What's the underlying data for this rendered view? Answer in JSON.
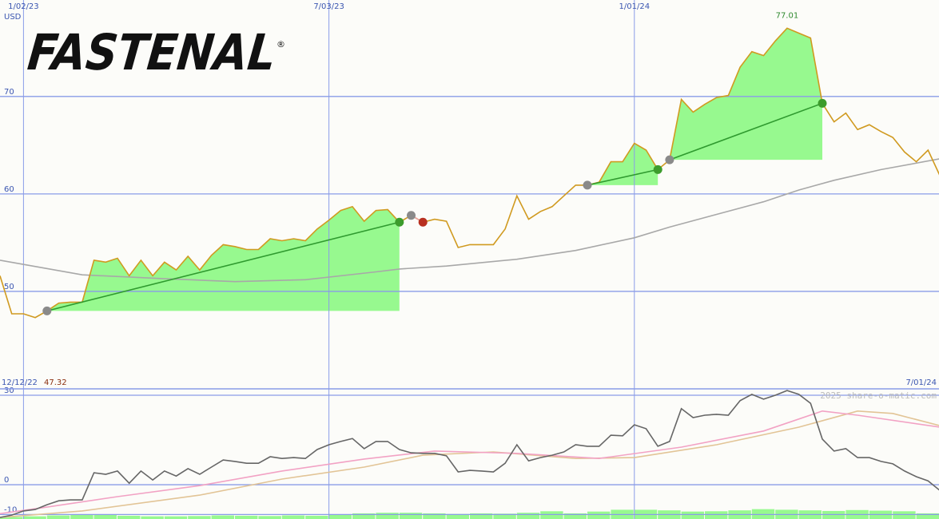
{
  "logo": "FASTENAL",
  "logo_mark": "®",
  "chart_data": [
    {
      "type": "line",
      "unit": "USD",
      "xlim": [
        0,
        80
      ],
      "xticks": [
        {
          "value": 2,
          "label": "1/02/23"
        },
        {
          "value": 28,
          "label": "7/03/23"
        },
        {
          "value": 54,
          "label": "1/01/24"
        }
      ],
      "ylim": [
        40,
        79.9
      ],
      "yticks": [
        50,
        60,
        70
      ],
      "grid": true,
      "grid_color": "#8a9ce8",
      "series": [
        {
          "color": "#d09a20",
          "values": [
            51.6,
            47.7,
            47.7,
            47.32,
            48.0,
            48.8,
            48.9,
            48.9,
            53.2,
            53.0,
            53.4,
            51.6,
            53.2,
            51.6,
            53.0,
            52.2,
            53.6,
            52.2,
            53.7,
            54.8,
            54.6,
            54.3,
            54.3,
            55.4,
            55.2,
            55.4,
            55.2,
            56.4,
            57.3,
            58.3,
            58.7,
            57.2,
            58.3,
            58.4,
            57.1,
            57.8,
            57.1,
            57.4,
            57.2,
            54.5,
            54.8,
            54.8,
            54.8,
            56.4,
            59.8,
            57.4,
            58.2,
            58.7,
            59.8,
            60.9,
            60.9,
            61.2,
            63.3,
            63.3,
            65.2,
            64.5,
            62.5,
            63.5,
            69.7,
            68.4,
            69.2,
            69.9,
            70.1,
            73.0,
            74.6,
            74.2,
            75.7,
            77.01,
            76.5,
            76.0,
            69.3,
            67.4,
            68.3,
            66.6,
            67.1,
            66.4,
            65.8,
            64.3,
            63.3,
            64.5,
            61.9
          ]
        },
        {
          "color": "#a8a8a8",
          "x": [
            0,
            7,
            14,
            20,
            26,
            32,
            34,
            38,
            44,
            49,
            54,
            57,
            61,
            65,
            68,
            71,
            75,
            80
          ],
          "values": [
            53.2,
            51.7,
            51.3,
            51.0,
            51.2,
            52.0,
            52.3,
            52.6,
            53.3,
            54.2,
            55.5,
            56.6,
            57.9,
            59.2,
            60.4,
            61.4,
            62.5,
            63.6
          ]
        }
      ],
      "trades": [
        {
          "buy": 4,
          "sell": 34
        },
        {
          "buy": 35,
          "sell": 36
        },
        {
          "buy": 50,
          "sell": 56
        },
        {
          "buy": 57,
          "sell": 70
        }
      ],
      "trade_colors": {
        "fill": "#97f98f",
        "buy": "#8a8a8a",
        "win": "#3c9c2c",
        "loss": "#b83020",
        "trend_win": "#2f9a2f",
        "trend_loss": "#e8a0a0"
      },
      "annotations": [
        {
          "x": 67,
          "value": 77.01,
          "color": "#2f8a2f"
        }
      ]
    },
    {
      "type": "line",
      "range_start": "12/12/22",
      "low": 47.32,
      "range_end": "7/01/24",
      "credit": "2025 share-o-matic.com",
      "xlim": [
        0,
        80
      ],
      "ylim": [
        -11.5,
        32.15
      ],
      "yticks": [
        -10,
        0,
        30
      ],
      "grid": true,
      "series": [
        {
          "color": "#666666",
          "values": [
            -11,
            -10.2,
            -8.8,
            -8.3,
            -6.7,
            -5.4,
            -5.1,
            -5.1,
            4.0,
            3.5,
            4.6,
            0.5,
            4.6,
            1.6,
            4.6,
            2.9,
            5.4,
            3.5,
            5.9,
            8.3,
            7.8,
            7.2,
            7.2,
            9.4,
            8.8,
            9.1,
            8.8,
            11.8,
            13.4,
            14.5,
            15.5,
            12.1,
            14.5,
            14.5,
            11.8,
            10.7,
            10.5,
            10.5,
            9.7,
            4.3,
            4.8,
            4.6,
            4.3,
            7.2,
            13.4,
            8.0,
            9.1,
            9.9,
            11.0,
            13.4,
            12.9,
            12.9,
            16.6,
            16.4,
            20.1,
            18.8,
            12.9,
            14.5,
            25.5,
            22.5,
            23.3,
            23.6,
            23.3,
            28.2,
            30.3,
            28.7,
            30.0,
            31.6,
            30.3,
            27.3,
            15.3,
            11.3,
            12.1,
            9.1,
            9.1,
            7.8,
            7.0,
            4.6,
            2.7,
            1.3,
            -1.9
          ]
        },
        {
          "color": "#f2a2c4",
          "x": [
            0,
            4,
            10,
            17,
            24,
            31,
            37,
            44,
            51,
            58,
            65,
            70,
            73,
            80
          ],
          "values": [
            -9.7,
            -7.5,
            -4,
            -0.3,
            4.6,
            8.6,
            11.3,
            10.5,
            8.8,
            12.6,
            18,
            24.7,
            23.3,
            19.3
          ]
        },
        {
          "color": "#e2c496",
          "x": [
            0,
            7,
            17,
            24,
            31,
            36,
            42,
            49,
            54,
            61,
            68,
            73,
            76,
            80
          ],
          "values": [
            -11,
            -8.8,
            -3.5,
            1.9,
            5.9,
            9.9,
            11,
            8.8,
            9.1,
            13.4,
            19.3,
            24.7,
            23.9,
            19.8
          ]
        }
      ],
      "volume": {
        "color": "#97f98f",
        "x": [
          0,
          2,
          4,
          6,
          8,
          10,
          12,
          14,
          16,
          18,
          20,
          22,
          24,
          26,
          28,
          30,
          32,
          34,
          36,
          38,
          40,
          42,
          44,
          46,
          48,
          50,
          52,
          54,
          56,
          58,
          60,
          62,
          64,
          66,
          68,
          70,
          72,
          74,
          76,
          78
        ],
        "values": [
          -10.8,
          -10.6,
          -10.3,
          -10.0,
          -9.9,
          -10.4,
          -10.6,
          -10.6,
          -10.5,
          -10.3,
          -10.4,
          -10.5,
          -10.3,
          -10.4,
          -10.0,
          -9.6,
          -9.4,
          -9.4,
          -9.6,
          -9.8,
          -9.6,
          -9.7,
          -9.4,
          -8.9,
          -9.6,
          -9.0,
          -8.4,
          -8.4,
          -8.6,
          -9.0,
          -8.9,
          -8.6,
          -8.2,
          -8.4,
          -8.6,
          -8.8,
          -8.5,
          -8.7,
          -8.9,
          -9.6
        ]
      }
    }
  ]
}
